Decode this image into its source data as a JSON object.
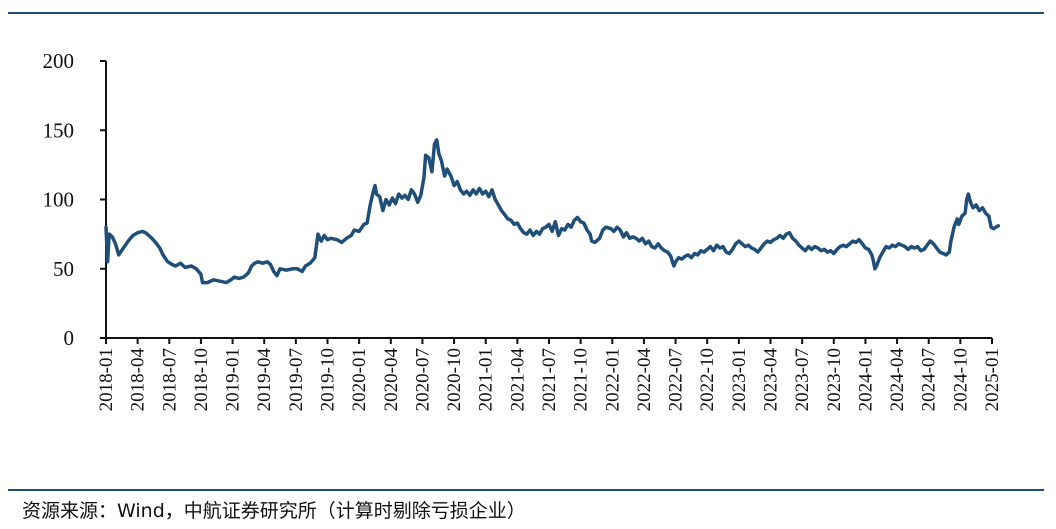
{
  "chart_data": {
    "type": "line",
    "title": "",
    "xlabel": "",
    "ylabel": "",
    "ylim": [
      0,
      200
    ],
    "yticks": [
      0,
      50,
      100,
      150,
      200
    ],
    "grid": false,
    "categories": [
      "2018-01",
      "2018-04",
      "2018-07",
      "2018-10",
      "2019-01",
      "2019-04",
      "2019-07",
      "2019-10",
      "2020-01",
      "2020-04",
      "2020-07",
      "2020-10",
      "2021-01",
      "2021-04",
      "2021-07",
      "2021-10",
      "2022-01",
      "2022-04",
      "2022-07",
      "2022-10",
      "2023-01",
      "2023-04",
      "2023-07",
      "2023-10",
      "2024-01",
      "2024-04",
      "2024-07",
      "2024-10",
      "2025-01"
    ],
    "series": [
      {
        "name": "",
        "color": "#1f4e79",
        "points": [
          [
            0.0,
            80
          ],
          [
            0.05,
            55
          ],
          [
            0.1,
            75
          ],
          [
            0.2,
            73
          ],
          [
            0.3,
            68
          ],
          [
            0.4,
            60
          ],
          [
            0.55,
            65
          ],
          [
            0.7,
            70
          ],
          [
            0.85,
            74
          ],
          [
            1.0,
            76
          ],
          [
            1.15,
            77
          ],
          [
            1.25,
            76
          ],
          [
            1.45,
            72
          ],
          [
            1.6,
            68
          ],
          [
            1.7,
            65
          ],
          [
            1.8,
            60
          ],
          [
            1.95,
            55
          ],
          [
            2.1,
            53
          ],
          [
            2.2,
            52
          ],
          [
            2.35,
            54
          ],
          [
            2.5,
            51
          ],
          [
            2.7,
            52
          ],
          [
            2.85,
            50
          ],
          [
            3.0,
            46
          ],
          [
            3.05,
            40
          ],
          [
            3.2,
            40
          ],
          [
            3.4,
            42
          ],
          [
            3.6,
            41
          ],
          [
            3.8,
            40
          ],
          [
            3.95,
            42
          ],
          [
            4.05,
            44
          ],
          [
            4.2,
            43
          ],
          [
            4.35,
            44
          ],
          [
            4.5,
            47
          ],
          [
            4.6,
            52
          ],
          [
            4.7,
            54
          ],
          [
            4.8,
            55
          ],
          [
            4.95,
            54
          ],
          [
            5.1,
            55
          ],
          [
            5.2,
            53
          ],
          [
            5.3,
            48
          ],
          [
            5.4,
            45
          ],
          [
            5.5,
            50
          ],
          [
            5.7,
            49
          ],
          [
            5.9,
            50
          ],
          [
            6.05,
            50
          ],
          [
            6.2,
            48
          ],
          [
            6.3,
            52
          ],
          [
            6.45,
            54
          ],
          [
            6.6,
            58
          ],
          [
            6.7,
            75
          ],
          [
            6.8,
            70
          ],
          [
            6.9,
            74
          ],
          [
            7.0,
            71
          ],
          [
            7.1,
            72
          ],
          [
            7.3,
            71
          ],
          [
            7.45,
            69
          ],
          [
            7.6,
            72
          ],
          [
            7.75,
            74
          ],
          [
            7.85,
            78
          ],
          [
            8.0,
            77
          ],
          [
            8.15,
            82
          ],
          [
            8.25,
            83
          ],
          [
            8.35,
            96
          ],
          [
            8.45,
            106
          ],
          [
            8.5,
            110
          ],
          [
            8.55,
            104
          ],
          [
            8.65,
            102
          ],
          [
            8.75,
            92
          ],
          [
            8.85,
            100
          ],
          [
            8.95,
            96
          ],
          [
            9.05,
            101
          ],
          [
            9.15,
            97
          ],
          [
            9.25,
            104
          ],
          [
            9.35,
            101
          ],
          [
            9.45,
            103
          ],
          [
            9.55,
            100
          ],
          [
            9.65,
            107
          ],
          [
            9.75,
            104
          ],
          [
            9.85,
            98
          ],
          [
            9.95,
            103
          ],
          [
            10.05,
            116
          ],
          [
            10.1,
            132
          ],
          [
            10.2,
            130
          ],
          [
            10.3,
            120
          ],
          [
            10.38,
            140
          ],
          [
            10.45,
            143
          ],
          [
            10.52,
            133
          ],
          [
            10.6,
            128
          ],
          [
            10.7,
            117
          ],
          [
            10.78,
            122
          ],
          [
            10.9,
            117
          ],
          [
            11.0,
            110
          ],
          [
            11.1,
            113
          ],
          [
            11.2,
            107
          ],
          [
            11.3,
            104
          ],
          [
            11.4,
            106
          ],
          [
            11.5,
            103
          ],
          [
            11.6,
            107
          ],
          [
            11.7,
            104
          ],
          [
            11.8,
            108
          ],
          [
            11.9,
            104
          ],
          [
            12.0,
            106
          ],
          [
            12.1,
            102
          ],
          [
            12.2,
            107
          ],
          [
            12.3,
            100
          ],
          [
            12.4,
            96
          ],
          [
            12.5,
            92
          ],
          [
            12.6,
            89
          ],
          [
            12.7,
            86
          ],
          [
            12.8,
            85
          ],
          [
            12.9,
            82
          ],
          [
            13.0,
            83
          ],
          [
            13.1,
            79
          ],
          [
            13.2,
            76
          ],
          [
            13.3,
            75
          ],
          [
            13.4,
            78
          ],
          [
            13.5,
            74
          ],
          [
            13.6,
            77
          ],
          [
            13.7,
            75
          ],
          [
            13.8,
            79
          ],
          [
            13.9,
            80
          ],
          [
            14.0,
            82
          ],
          [
            14.1,
            77
          ],
          [
            14.2,
            84
          ],
          [
            14.3,
            74
          ],
          [
            14.4,
            79
          ],
          [
            14.5,
            78
          ],
          [
            14.6,
            82
          ],
          [
            14.7,
            80
          ],
          [
            14.8,
            85
          ],
          [
            14.9,
            87
          ],
          [
            15.0,
            84
          ],
          [
            15.1,
            83
          ],
          [
            15.2,
            78
          ],
          [
            15.3,
            75
          ],
          [
            15.35,
            70
          ],
          [
            15.45,
            69
          ],
          [
            15.6,
            72
          ],
          [
            15.7,
            78
          ],
          [
            15.8,
            80
          ],
          [
            15.95,
            79
          ],
          [
            16.05,
            77
          ],
          [
            16.15,
            80
          ],
          [
            16.25,
            78
          ],
          [
            16.35,
            73
          ],
          [
            16.45,
            76
          ],
          [
            16.55,
            72
          ],
          [
            16.65,
            73
          ],
          [
            16.75,
            72
          ],
          [
            16.85,
            70
          ],
          [
            16.95,
            72
          ],
          [
            17.05,
            68
          ],
          [
            17.15,
            70
          ],
          [
            17.25,
            66
          ],
          [
            17.35,
            65
          ],
          [
            17.45,
            68
          ],
          [
            17.55,
            65
          ],
          [
            17.65,
            63
          ],
          [
            17.75,
            62
          ],
          [
            17.85,
            59
          ],
          [
            17.9,
            55
          ],
          [
            17.95,
            52
          ],
          [
            18.0,
            55
          ],
          [
            18.1,
            58
          ],
          [
            18.2,
            57
          ],
          [
            18.3,
            59
          ],
          [
            18.4,
            60
          ],
          [
            18.5,
            58
          ],
          [
            18.6,
            61
          ],
          [
            18.7,
            60
          ],
          [
            18.8,
            63
          ],
          [
            18.9,
            62
          ],
          [
            19.0,
            64
          ],
          [
            19.1,
            66
          ],
          [
            19.2,
            63
          ],
          [
            19.3,
            67
          ],
          [
            19.4,
            65
          ],
          [
            19.5,
            66
          ],
          [
            19.6,
            62
          ],
          [
            19.7,
            61
          ],
          [
            19.8,
            64
          ],
          [
            19.9,
            68
          ],
          [
            20.0,
            70
          ],
          [
            20.1,
            68
          ],
          [
            20.2,
            66
          ],
          [
            20.3,
            67
          ],
          [
            20.4,
            65
          ],
          [
            20.5,
            64
          ],
          [
            20.6,
            62
          ],
          [
            20.7,
            65
          ],
          [
            20.8,
            68
          ],
          [
            20.9,
            70
          ],
          [
            21.0,
            69
          ],
          [
            21.1,
            71
          ],
          [
            21.2,
            72
          ],
          [
            21.3,
            74
          ],
          [
            21.4,
            72
          ],
          [
            21.5,
            75
          ],
          [
            21.6,
            76
          ],
          [
            21.7,
            72
          ],
          [
            21.8,
            70
          ],
          [
            21.9,
            67
          ],
          [
            22.0,
            65
          ],
          [
            22.1,
            63
          ],
          [
            22.2,
            66
          ],
          [
            22.3,
            64
          ],
          [
            22.4,
            66
          ],
          [
            22.5,
            65
          ],
          [
            22.6,
            63
          ],
          [
            22.7,
            64
          ],
          [
            22.8,
            62
          ],
          [
            22.9,
            63
          ],
          [
            23.0,
            61
          ],
          [
            23.1,
            64
          ],
          [
            23.2,
            66
          ],
          [
            23.3,
            67
          ],
          [
            23.4,
            66
          ],
          [
            23.5,
            68
          ],
          [
            23.6,
            70
          ],
          [
            23.7,
            69
          ],
          [
            23.8,
            71
          ],
          [
            23.9,
            68
          ],
          [
            24.0,
            65
          ],
          [
            24.1,
            64
          ],
          [
            24.2,
            60
          ],
          [
            24.25,
            56
          ],
          [
            24.3,
            50
          ],
          [
            24.35,
            52
          ],
          [
            24.45,
            58
          ],
          [
            24.55,
            62
          ],
          [
            24.65,
            66
          ],
          [
            24.75,
            65
          ],
          [
            24.85,
            67
          ],
          [
            24.95,
            66
          ],
          [
            25.05,
            68
          ],
          [
            25.15,
            67
          ],
          [
            25.25,
            66
          ],
          [
            25.35,
            64
          ],
          [
            25.45,
            66
          ],
          [
            25.55,
            65
          ],
          [
            25.65,
            66
          ],
          [
            25.75,
            63
          ],
          [
            25.85,
            64
          ],
          [
            25.95,
            67
          ],
          [
            26.05,
            70
          ],
          [
            26.15,
            68
          ],
          [
            26.25,
            65
          ],
          [
            26.35,
            62
          ],
          [
            26.45,
            61
          ],
          [
            26.55,
            60
          ],
          [
            26.65,
            62
          ],
          [
            26.7,
            70
          ],
          [
            26.8,
            80
          ],
          [
            26.9,
            86
          ],
          [
            26.95,
            82
          ],
          [
            27.05,
            88
          ],
          [
            27.15,
            90
          ],
          [
            27.2,
            100
          ],
          [
            27.25,
            104
          ],
          [
            27.32,
            98
          ],
          [
            27.4,
            94
          ],
          [
            27.5,
            96
          ],
          [
            27.6,
            92
          ],
          [
            27.7,
            94
          ],
          [
            27.8,
            90
          ],
          [
            27.9,
            88
          ],
          [
            27.97,
            80
          ],
          [
            28.05,
            79
          ],
          [
            28.2,
            81
          ]
        ]
      }
    ]
  },
  "footer": {
    "source": "资源来源：Wind，中航证券研究所（计算时剔除亏损企业）"
  }
}
